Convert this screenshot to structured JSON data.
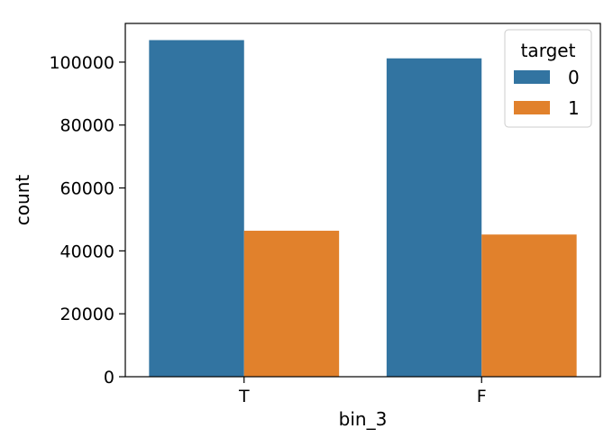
{
  "chart_data": {
    "type": "bar",
    "categories": [
      "T",
      "F"
    ],
    "series": [
      {
        "name": "0",
        "values": [
          107000,
          101200
        ],
        "color": "#3274a1"
      },
      {
        "name": "1",
        "values": [
          46400,
          45200
        ],
        "color": "#e1812c"
      }
    ],
    "xlabel": "bin_3",
    "ylabel": "count",
    "ylim": [
      0,
      112300
    ],
    "yticks": [
      0,
      20000,
      40000,
      60000,
      80000,
      100000
    ],
    "legend": {
      "title": "target",
      "placement": "top-right"
    },
    "grid": false
  }
}
